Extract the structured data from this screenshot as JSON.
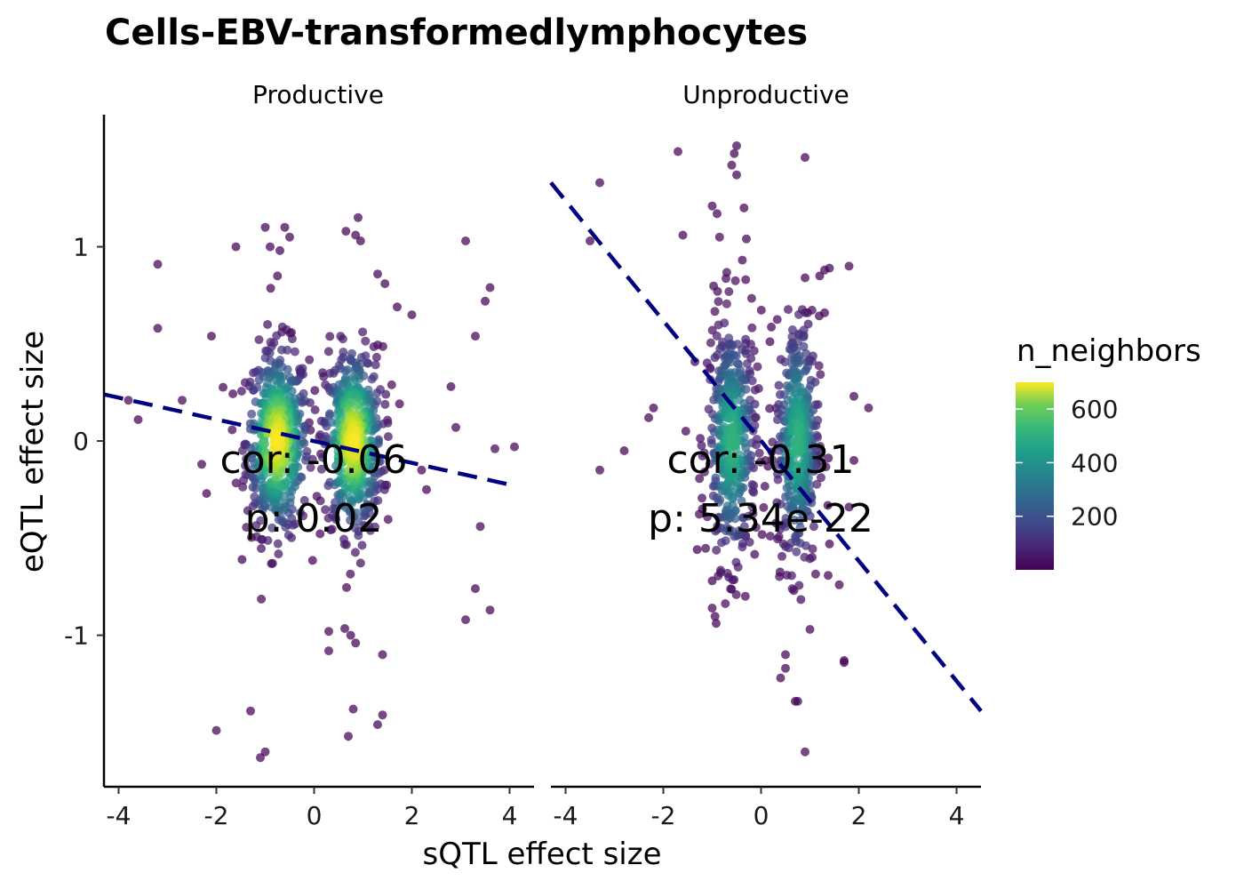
{
  "chart_data": {
    "type": "scatter",
    "title": "Cells-EBV-transformedlymphocytes",
    "xlabel": "sQTL effect size",
    "ylabel": "eQTL effect size",
    "xlim": [
      -4.3,
      4.5
    ],
    "ylim": [
      -1.78,
      1.68
    ],
    "x_ticks": [
      -4,
      -2,
      0,
      2,
      4
    ],
    "y_ticks": [
      -1,
      0,
      1
    ],
    "x_tick_labels": [
      "-4",
      "-2",
      "0",
      "2",
      "4"
    ],
    "y_tick_labels": [
      "-1",
      "0",
      "1"
    ],
    "grid": false,
    "color_scale": {
      "name": "n_neighbors",
      "palette": "viridis",
      "range": [
        0,
        700
      ],
      "ticks": [
        200,
        400,
        600
      ],
      "tick_labels": [
        "200",
        "400",
        "600"
      ],
      "legend_position": "right"
    },
    "fit_line_color": "#000080",
    "facets": [
      {
        "label": "Productive",
        "annotation": {
          "cor": "cor: -0.06",
          "p": "p: 0.02"
        },
        "fit_line": {
          "x": [
            -4.3,
            4.1
          ],
          "y": [
            0.24,
            -0.23
          ]
        },
        "clusters": [
          {
            "cx": -0.75,
            "sx": 0.32,
            "sy": 0.24,
            "n": 520
          },
          {
            "cx": 0.8,
            "sx": 0.3,
            "sy": 0.24,
            "n": 500
          }
        ],
        "outliers": [
          [
            -3.2,
            0.91
          ],
          [
            -3.2,
            0.58
          ],
          [
            -3.8,
            0.21
          ],
          [
            -3.6,
            0.11
          ],
          [
            -2.7,
            0.21
          ],
          [
            -2.1,
            0.54
          ],
          [
            -2.0,
            -1.49
          ],
          [
            -1.3,
            -1.39
          ],
          [
            -1.1,
            -1.63
          ],
          [
            -1.0,
            -1.6
          ],
          [
            -1.6,
            1.0
          ],
          [
            -1.0,
            1.1
          ],
          [
            -0.6,
            1.1
          ],
          [
            -0.9,
            1.0
          ],
          [
            -0.5,
            1.05
          ],
          [
            -0.7,
            0.98
          ],
          [
            -0.75,
            0.85
          ],
          [
            0.9,
            1.15
          ],
          [
            0.65,
            1.08
          ],
          [
            0.85,
            1.06
          ],
          [
            0.95,
            1.03
          ],
          [
            3.1,
            1.03
          ],
          [
            3.6,
            0.79
          ],
          [
            3.5,
            0.72
          ],
          [
            3.3,
            0.54
          ],
          [
            2.8,
            0.28
          ],
          [
            2.9,
            0.07
          ],
          [
            3.7,
            -0.04
          ],
          [
            4.1,
            -0.03
          ],
          [
            3.4,
            -0.44
          ],
          [
            3.3,
            -0.76
          ],
          [
            3.6,
            -0.87
          ],
          [
            3.1,
            -0.92
          ],
          [
            0.3,
            -0.98
          ],
          [
            0.3,
            -1.08
          ],
          [
            0.75,
            -1.0
          ],
          [
            0.85,
            -1.04
          ],
          [
            0.8,
            -1.38
          ],
          [
            0.7,
            -1.52
          ],
          [
            1.3,
            -1.46
          ],
          [
            1.4,
            -1.41
          ],
          [
            1.4,
            -1.1
          ],
          [
            1.3,
            0.86
          ],
          [
            1.45,
            0.81
          ],
          [
            1.7,
            0.69
          ],
          [
            2.0,
            0.65
          ],
          [
            2.3,
            -0.25
          ],
          [
            2.2,
            -0.15
          ],
          [
            -2.3,
            -0.12
          ],
          [
            -2.2,
            -0.27
          ]
        ]
      },
      {
        "label": "Unproductive",
        "annotation": {
          "cor": "cor: -0.31",
          "p": "p: 5.34e-22"
        },
        "fit_line": {
          "x": [
            -4.3,
            4.5
          ],
          "y": [
            1.33,
            -1.39
          ]
        },
        "clusters": [
          {
            "cx": -0.6,
            "sx": 0.25,
            "sy": 0.32,
            "n": 430
          },
          {
            "cx": 0.75,
            "sx": 0.22,
            "sy": 0.32,
            "n": 400
          }
        ],
        "outliers": [
          [
            -3.3,
            1.33
          ],
          [
            -3.5,
            1.03
          ],
          [
            -3.3,
            -0.15
          ],
          [
            -2.8,
            -0.05
          ],
          [
            -2.2,
            0.17
          ],
          [
            -2.3,
            0.12
          ],
          [
            -1.7,
            1.49
          ],
          [
            -1.6,
            1.06
          ],
          [
            -1.0,
            1.21
          ],
          [
            -0.9,
            1.17
          ],
          [
            -0.5,
            1.52
          ],
          [
            -0.55,
            1.48
          ],
          [
            -0.6,
            1.42
          ],
          [
            -0.5,
            1.37
          ],
          [
            -0.35,
            1.2
          ],
          [
            -0.3,
            1.04
          ],
          [
            0.9,
            1.46
          ],
          [
            1.8,
            0.9
          ],
          [
            1.3,
            0.88
          ],
          [
            1.4,
            0.89
          ],
          [
            1.9,
            0.23
          ],
          [
            2.2,
            0.17
          ],
          [
            1.9,
            -0.1
          ],
          [
            1.8,
            -0.34
          ],
          [
            1.4,
            -0.53
          ],
          [
            1.6,
            -0.74
          ],
          [
            1.7,
            -1.14
          ],
          [
            1.7,
            -1.13
          ],
          [
            1.0,
            -0.97
          ],
          [
            0.9,
            -1.6
          ],
          [
            0.7,
            -1.34
          ],
          [
            0.75,
            -1.34
          ],
          [
            0.5,
            -1.17
          ],
          [
            0.4,
            -1.22
          ],
          [
            0.5,
            -1.1
          ],
          [
            -1.0,
            -0.86
          ],
          [
            -1.0,
            -0.72
          ],
          [
            -1.2,
            -0.35
          ],
          [
            0.95,
            0.66
          ],
          [
            1.3,
            0.66
          ],
          [
            1.2,
            0.85
          ],
          [
            0.9,
            0.84
          ],
          [
            -0.85,
            1.05
          ]
        ]
      }
    ]
  }
}
